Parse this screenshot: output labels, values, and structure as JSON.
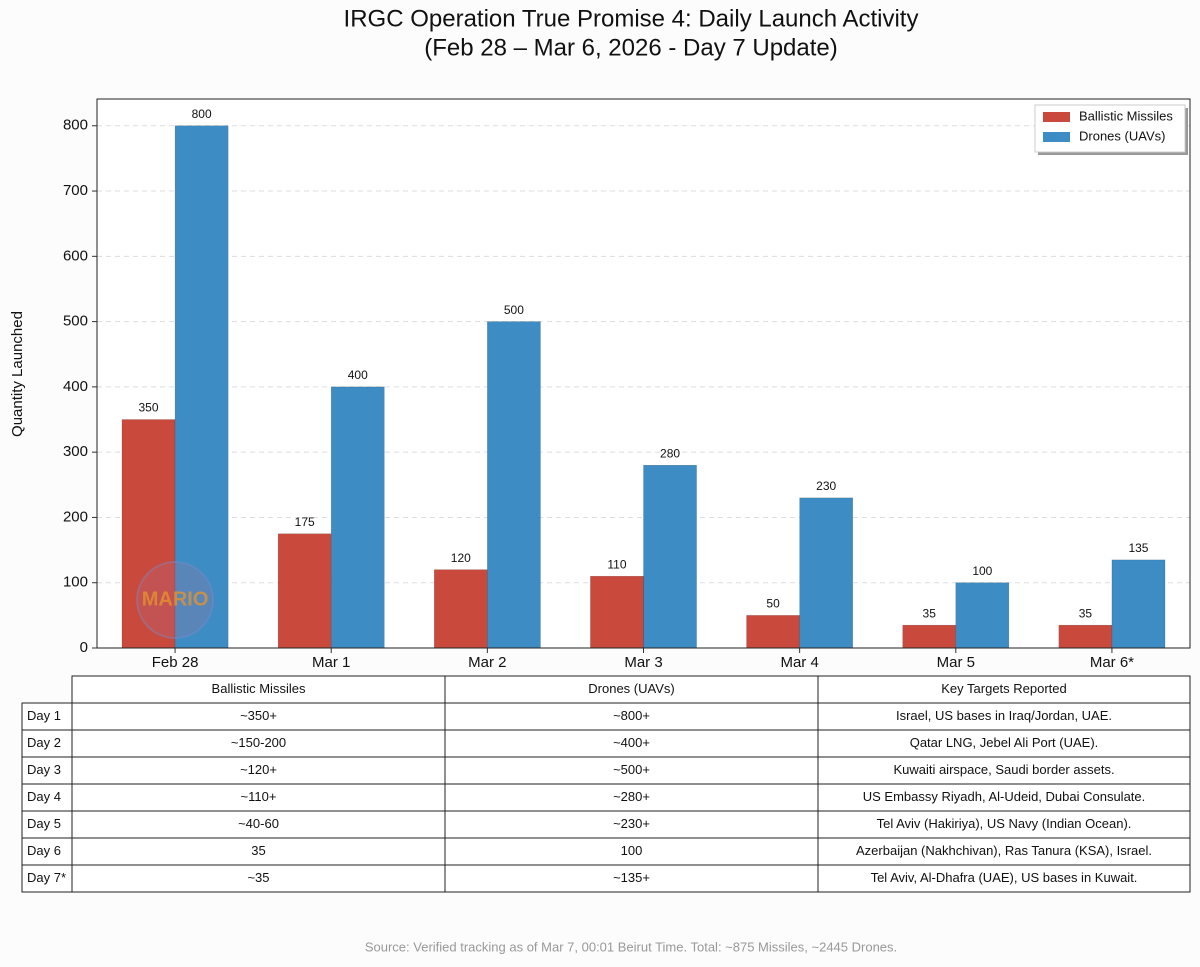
{
  "chart_data": {
    "type": "bar",
    "title": "IRGC Operation True Promise 4: Daily Launch Activity",
    "subtitle": "(Feb 28 – Mar 6, 2026 - Day 7 Update)",
    "y_label": "Quantity Launched",
    "categories": [
      "Feb 28",
      "Mar 1",
      "Mar 2",
      "Mar 3",
      "Mar 4",
      "Mar 5",
      "Mar 6*"
    ],
    "series": [
      {
        "name": "Ballistic Missiles",
        "color": "#c94a3d",
        "values": [
          350,
          175,
          120,
          110,
          50,
          35,
          35
        ]
      },
      {
        "name": "Drones (UAVs)",
        "color": "#3d8cc4",
        "values": [
          800,
          400,
          500,
          280,
          230,
          100,
          135
        ]
      }
    ],
    "ylim": [
      0,
      841
    ],
    "yticks": [
      0,
      100,
      200,
      300,
      400,
      500,
      600,
      700,
      800
    ],
    "grid": true,
    "legend": "upper-right",
    "watermark": "MARIO"
  },
  "table": {
    "columns": [
      "Ballistic Missiles",
      "Drones (UAVs)",
      "Key Targets Reported"
    ],
    "rows": [
      [
        "Day 1",
        "~350+",
        "~800+",
        "Israel, US bases in Iraq/Jordan, UAE."
      ],
      [
        "Day 2",
        "~150-200",
        "~400+",
        "Qatar LNG, Jebel Ali Port (UAE)."
      ],
      [
        "Day 3",
        "~120+",
        "~500+",
        "Kuwaiti airspace, Saudi border assets."
      ],
      [
        "Day 4",
        "~110+",
        "~280+",
        "US Embassy Riyadh, Al-Udeid, Dubai Consulate."
      ],
      [
        "Day 5",
        "~40-60",
        "~230+",
        "Tel Aviv (Hakiriya), US Navy (Indian Ocean)."
      ],
      [
        "Day 6",
        "35",
        "100",
        "Azerbaijan (Nakhchivan), Ras Tanura (KSA), Israel."
      ],
      [
        "Day 7*",
        "~35",
        "~135+",
        "Tel Aviv, Al-Dhafra (UAE), US bases in Kuwait."
      ]
    ]
  },
  "source": "Source: Verified tracking as of Mar 7, 00:01 Beirut Time. Total: ~875 Missiles, ~2445 Drones."
}
